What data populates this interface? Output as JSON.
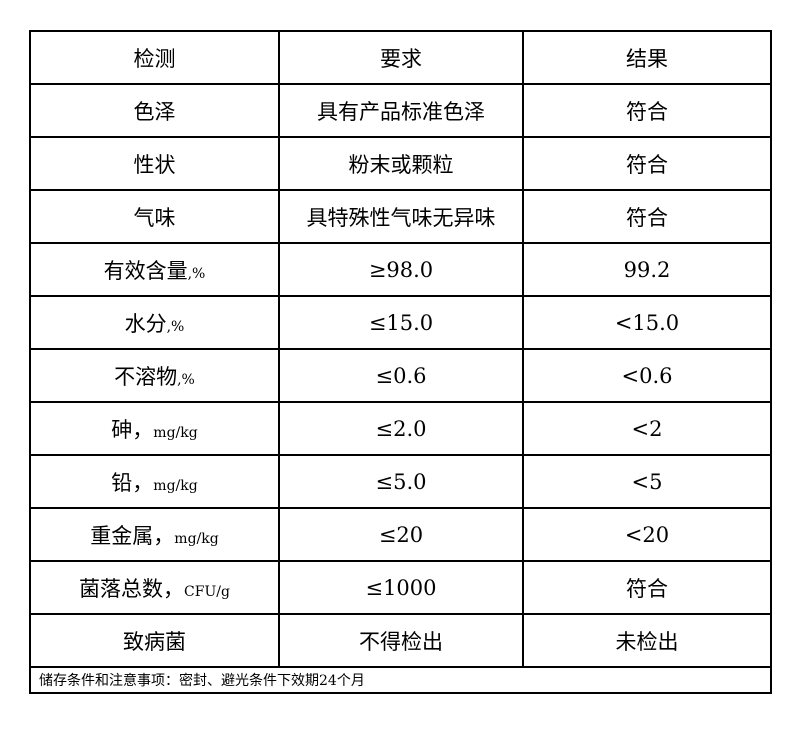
{
  "headers": [
    "检测",
    "要求",
    "结果"
  ],
  "rows": [
    {
      "item": "色泽",
      "unit": "",
      "requirement": "具有产品标准色泽",
      "result": "符合"
    },
    {
      "item": "性状",
      "unit": "",
      "requirement": "粉末或颗粒",
      "result": "符合"
    },
    {
      "item": "气味",
      "unit": "",
      "requirement": "具特殊性气味无异味",
      "result": "符合"
    },
    {
      "item": "有效含量",
      "unit": ",%",
      "requirement": "≥98.0",
      "result": "99.2"
    },
    {
      "item": "水分",
      "unit": ",%",
      "requirement": "≤15.0",
      "result": "<15.0"
    },
    {
      "item": "不溶物",
      "unit": ",%",
      "requirement": "≤0.6",
      "result": "<0.6"
    },
    {
      "item": "砷，",
      "unit": "mg/kg",
      "requirement": "≤2.0",
      "result": "<2"
    },
    {
      "item": "铅，",
      "unit": "mg/kg",
      "requirement": "≤5.0",
      "result": "<5"
    },
    {
      "item": "重金属，",
      "unit": "mg/kg",
      "requirement": "≤20",
      "result": "<20"
    },
    {
      "item": "菌落总数，",
      "unit": "CFU/g",
      "requirement": "≤1000",
      "result": "符合"
    },
    {
      "item": "致病菌",
      "unit": "",
      "requirement": "不得检出",
      "result": "未检出"
    }
  ],
  "footer": "储存条件和注意事项：密封、避光条件下效期24个月"
}
